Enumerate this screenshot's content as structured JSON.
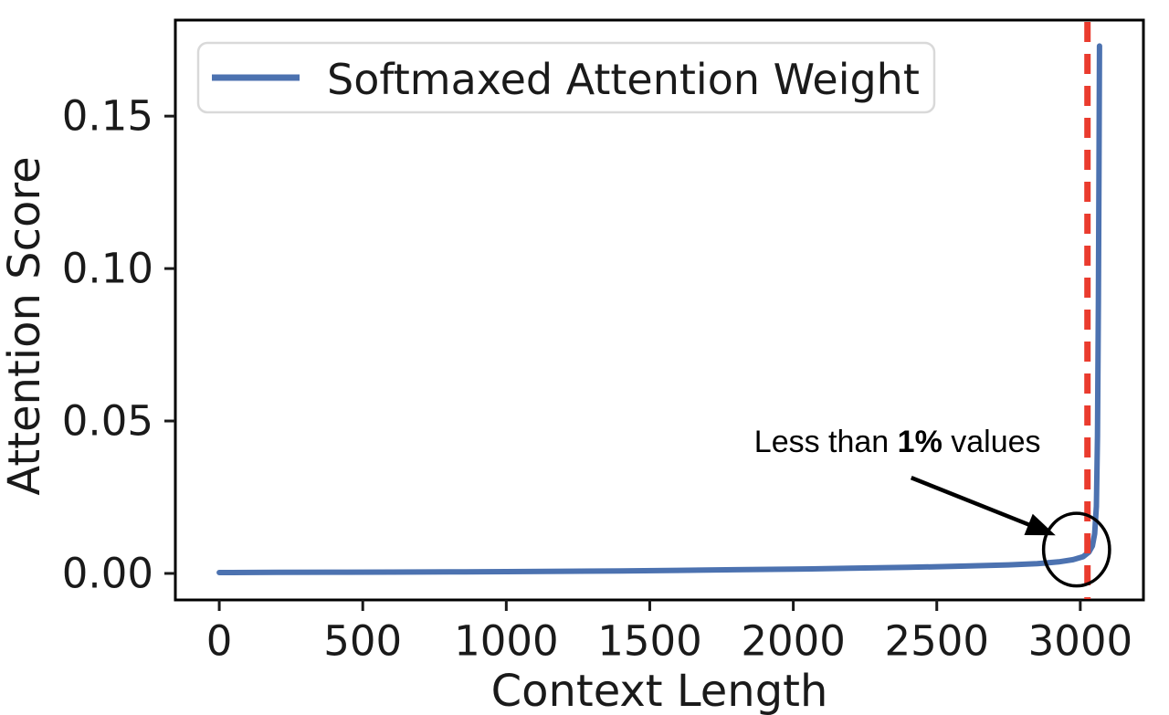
{
  "figure": {
    "background": "#ffffff",
    "text_color": "#1a1a1a",
    "spine_color": "#000000"
  },
  "chart_data": {
    "type": "line",
    "title": "",
    "xlabel": "Context Length",
    "ylabel": "Attention Score",
    "xlim": [
      -153,
      3220
    ],
    "ylim": [
      -0.0087,
      0.1815
    ],
    "xticks": [
      0,
      500,
      1000,
      1500,
      2000,
      2500,
      3000
    ],
    "xtick_labels": [
      "0",
      "500",
      "1000",
      "1500",
      "2000",
      "2500",
      "3000"
    ],
    "yticks": [
      0,
      0.05,
      0.1,
      0.15
    ],
    "ytick_labels": [
      "0.00",
      "0.05",
      "0.10",
      "0.15"
    ],
    "grid": false,
    "legend": {
      "position": "upper-left",
      "label": "Softmaxed Attention Weight",
      "line_color": "#4C72B0"
    },
    "series": [
      {
        "name": "Softmaxed Attention Weight",
        "color": "#4C72B0",
        "x": [
          0,
          200,
          400,
          600,
          800,
          1000,
          1200,
          1400,
          1600,
          1800,
          2000,
          2200,
          2400,
          2600,
          2750,
          2850,
          2925,
          2975,
          3010,
          3030,
          3042,
          3050,
          3056,
          3060,
          3063,
          3065,
          3067
        ],
        "y": [
          0.0003,
          0.00035,
          0.0004,
          0.00045,
          0.0005,
          0.0006,
          0.0007,
          0.0008,
          0.001,
          0.0012,
          0.0014,
          0.0017,
          0.002,
          0.0024,
          0.0028,
          0.0032,
          0.0038,
          0.0045,
          0.0055,
          0.007,
          0.009,
          0.013,
          0.022,
          0.045,
          0.09,
          0.13,
          0.173
        ]
      }
    ],
    "vline": {
      "x": 3025,
      "color": "#EA3B2E",
      "style": "dashed"
    },
    "annotation": {
      "text": {
        "prefix": "Less than ",
        "bold": "1%",
        "suffix": " values",
        "center": [
          2363,
          0.0431
        ]
      },
      "arrow": {
        "from": [
          2411,
          0.0314
        ],
        "to": [
          2914,
          0.0125
        ]
      },
      "circle": {
        "center": [
          2987,
          0.0078
        ],
        "rx": 115,
        "ry": 0.0119
      }
    }
  }
}
